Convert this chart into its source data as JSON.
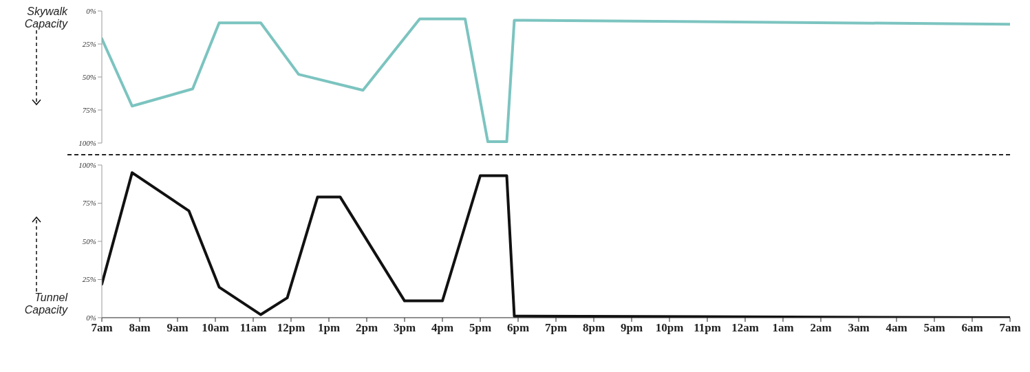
{
  "chart_data": [
    {
      "type": "line",
      "ylabel": "Skywalk Capacity",
      "x": [
        "--01-01T07:00",
        "--01-01T07:48",
        "--01-01T09:24",
        "--01-01T10:06",
        "--01-01T11:12",
        "--01-01T12:12",
        "--01-01T13:54",
        "--01-01T15:24",
        "--01-01T16:36",
        "--01-01T17:12",
        "--01-01T17:42",
        "--01-01T17:54",
        "--01-02T07:00"
      ],
      "values": [
        21,
        72,
        59,
        9,
        9,
        48,
        60,
        6,
        6,
        99,
        99,
        7,
        10
      ],
      "color": "#7cc4c0",
      "xlim": [
        "--01-01T07:00",
        "--01-02T07:00"
      ],
      "ylim": [
        100,
        0
      ],
      "yticks": [
        {
          "value": 0,
          "label": "0%"
        },
        {
          "value": 25,
          "label": "25%"
        },
        {
          "value": 50,
          "label": "50%"
        },
        {
          "value": 75,
          "label": "75%"
        },
        {
          "value": 100,
          "label": "100%"
        }
      ],
      "tick_labels": "y",
      "marker": "none",
      "line_style": "solid",
      "grid": false,
      "legend": false
    },
    {
      "type": "line",
      "ylabel": "Tunnel Capacity",
      "x": [
        "--01-01T07:00",
        "--01-01T07:48",
        "--01-01T09:18",
        "--01-01T10:06",
        "--01-01T11:12",
        "--01-01T11:54",
        "--01-01T12:42",
        "--01-01T13:18",
        "--01-01T15:00",
        "--01-01T16:00",
        "--01-01T17:00",
        "--01-01T17:42",
        "--01-01T17:54",
        "--01-02T07:00"
      ],
      "values": [
        22,
        95,
        70,
        20,
        2,
        13,
        79,
        79,
        11,
        11,
        93,
        93,
        1,
        0
      ],
      "color": "#111111",
      "xlim": [
        "--01-01T07:00",
        "--01-02T07:00"
      ],
      "ylim": [
        0,
        100
      ],
      "yticks": [
        {
          "value": 0,
          "label": "0%"
        },
        {
          "value": 25,
          "label": "25%"
        },
        {
          "value": 50,
          "label": "50%"
        },
        {
          "value": 75,
          "label": "75%"
        },
        {
          "value": 100,
          "label": "100%"
        }
      ],
      "xticks": [
        {
          "value": "--01-01T07:00",
          "label": "7am"
        },
        {
          "value": "--01-01T08:00",
          "label": "8am"
        },
        {
          "value": "--01-01T09:00",
          "label": "9am"
        },
        {
          "value": "--01-01T10:00",
          "label": "10am"
        },
        {
          "value": "--01-01T11:00",
          "label": "11am"
        },
        {
          "value": "--01-01T12:00",
          "label": "12pm"
        },
        {
          "value": "--01-01T13:00",
          "label": "1pm"
        },
        {
          "value": "--01-01T14:00",
          "label": "2pm"
        },
        {
          "value": "--01-01T15:00",
          "label": "3pm"
        },
        {
          "value": "--01-01T16:00",
          "label": "4pm"
        },
        {
          "value": "--01-01T17:00",
          "label": "5pm"
        },
        {
          "value": "--01-01T18:00",
          "label": "6pm"
        },
        {
          "value": "--01-01T19:00",
          "label": "7pm"
        },
        {
          "value": "--01-01T20:00",
          "label": "8pm"
        },
        {
          "value": "--01-01T21:00",
          "label": "9pm"
        },
        {
          "value": "--01-01T22:00",
          "label": "10pm"
        },
        {
          "value": "--01-01T23:00",
          "label": "11pm"
        },
        {
          "value": "--01-02T00:00",
          "label": "12am"
        },
        {
          "value": "--01-02T01:00",
          "label": "1am"
        },
        {
          "value": "--01-02T02:00",
          "label": "2am"
        },
        {
          "value": "--01-02T03:00",
          "label": "3am"
        },
        {
          "value": "--01-02T04:00",
          "label": "4am"
        },
        {
          "value": "--01-02T05:00",
          "label": "5am"
        },
        {
          "value": "--01-02T06:00",
          "label": "6am"
        },
        {
          "value": "--01-02T07:00",
          "label": "7am"
        }
      ],
      "marker": "none",
      "line_style": "solid",
      "grid": false,
      "legend": false
    }
  ]
}
